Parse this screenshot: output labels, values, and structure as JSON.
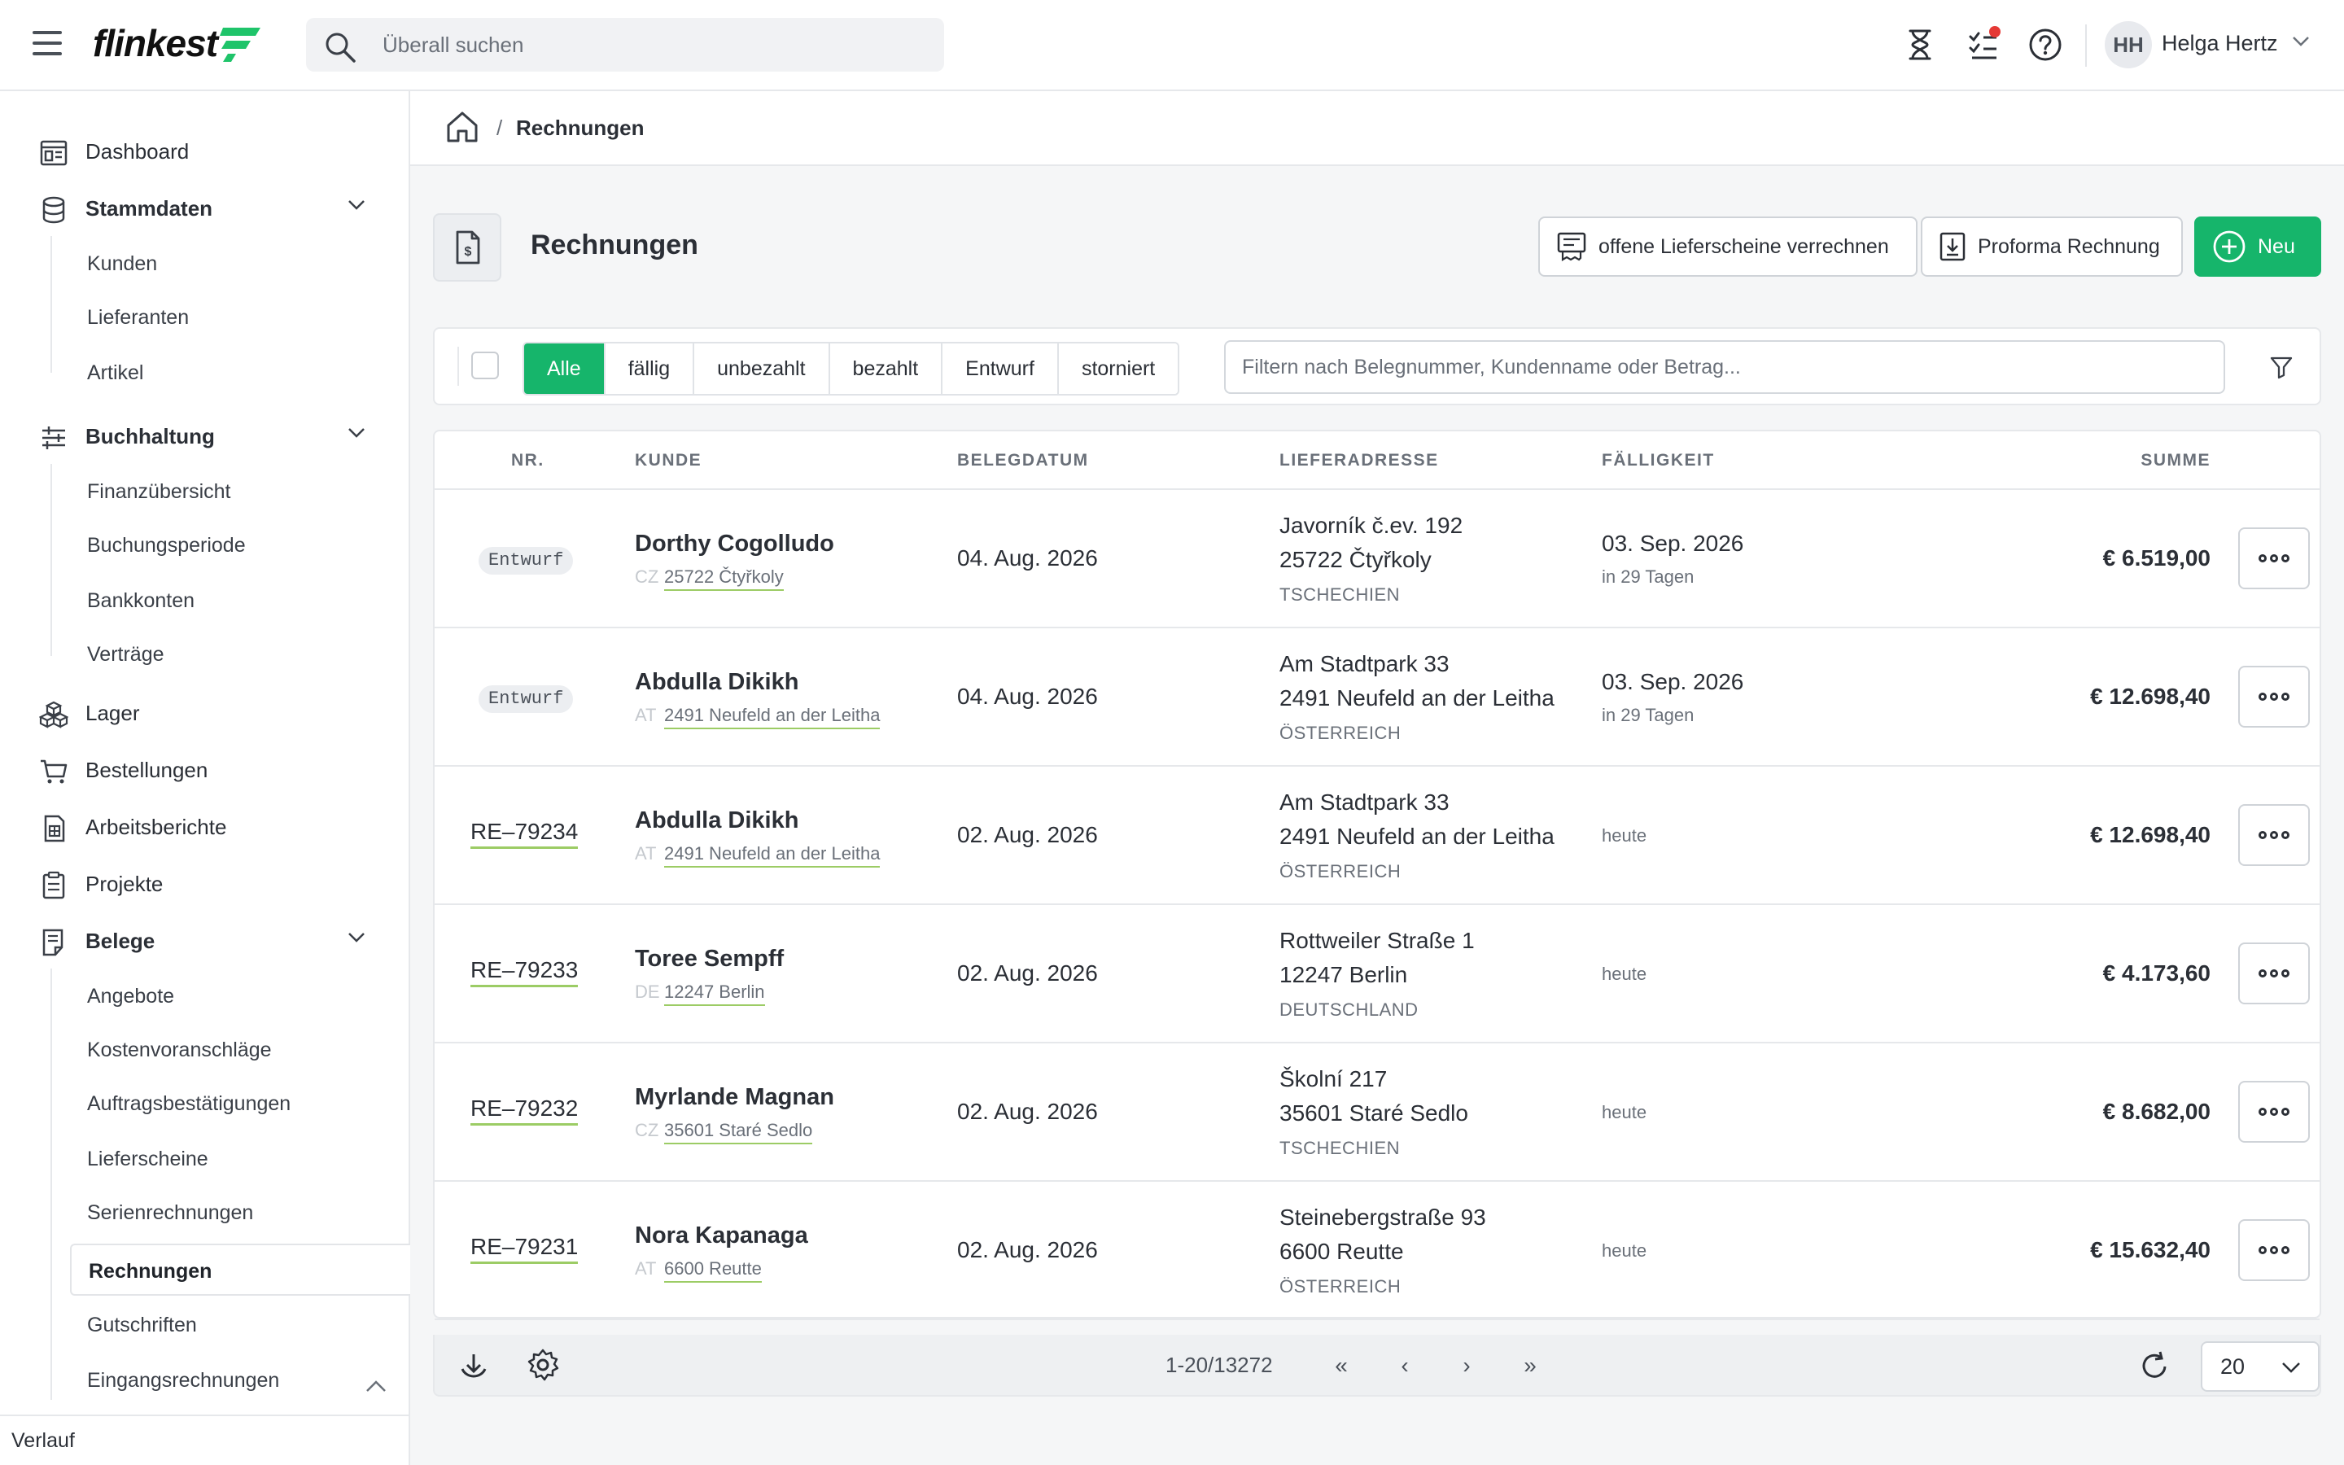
{
  "topbar": {
    "logo": "flinkest",
    "search_placeholder": "Überall suchen",
    "user_initials": "HH",
    "user_name": "Helga Hertz",
    "icons": [
      "hourglass-icon",
      "checklist-icon",
      "help-icon"
    ]
  },
  "sidebar": {
    "items": [
      {
        "label": "Dashboard",
        "icon": "dashboard-icon"
      },
      {
        "label": "Stammdaten",
        "icon": "database-icon",
        "children": [
          "Kunden",
          "Lieferanten",
          "Artikel"
        ]
      },
      {
        "label": "Buchhaltung",
        "icon": "sliders-icon",
        "children": [
          "Finanzübersicht",
          "Buchungsperiode",
          "Bankkonten",
          "Verträge"
        ]
      },
      {
        "label": "Lager",
        "icon": "boxes-icon"
      },
      {
        "label": "Bestellungen",
        "icon": "cart-icon"
      },
      {
        "label": "Arbeitsberichte",
        "icon": "report-icon"
      },
      {
        "label": "Projekte",
        "icon": "clipboard-icon"
      },
      {
        "label": "Belege",
        "icon": "document-icon",
        "children": [
          "Angebote",
          "Kostenvoranschläge",
          "Auftragsbestätigungen",
          "Lieferscheine",
          "Serienrechnungen",
          "Rechnungen",
          "Gutschriften",
          "Eingangsrechnungen"
        ]
      }
    ],
    "active": "Rechnungen",
    "footer": "Verlauf"
  },
  "breadcrumb": {
    "separator": "/",
    "current": "Rechnungen"
  },
  "page": {
    "title": "Rechnungen",
    "btn_open_delivery": "offene Lieferscheine verrechnen",
    "btn_proforma": "Proforma Rechnung",
    "btn_new": "Neu"
  },
  "filters": {
    "tabs": [
      "Alle",
      "fällig",
      "unbezahlt",
      "bezahlt",
      "Entwurf",
      "storniert"
    ],
    "active": "Alle",
    "placeholder": "Filtern nach Belegnummer, Kundenname oder Betrag..."
  },
  "table": {
    "headers": {
      "nr": "NR.",
      "kunde": "KUNDE",
      "belegdatum": "BELEGDATUM",
      "lieferadresse": "LIEFERADRESSE",
      "faelligkeit": "FÄLLIGKEIT",
      "summe": "SUMME"
    },
    "rows": [
      {
        "nr": "Entwurf",
        "draft": true,
        "name": "Dorthy Cogolludo",
        "country": "CZ",
        "city": "25722 Čtyřkoly",
        "date": "04. Aug. 2026",
        "addr1": "Javorník č.ev. 192",
        "addr2": "25722 Čtyřkoly",
        "addr3": "TSCHECHIEN",
        "due": "03. Sep. 2026",
        "due_sub": "in 29 Tagen",
        "sum": "€ 6.519,00"
      },
      {
        "nr": "Entwurf",
        "draft": true,
        "name": "Abdulla Dikikh",
        "country": "AT",
        "city": "2491 Neufeld an der Leitha",
        "date": "04. Aug. 2026",
        "addr1": "Am Stadtpark 33",
        "addr2": "2491 Neufeld an der Leitha",
        "addr3": "ÖSTERREICH",
        "due": "03. Sep. 2026",
        "due_sub": "in 29 Tagen",
        "sum": "€ 12.698,40"
      },
      {
        "nr": "RE–79234",
        "draft": false,
        "name": "Abdulla Dikikh",
        "country": "AT",
        "city": "2491 Neufeld an der Leitha",
        "date": "02. Aug. 2026",
        "addr1": "Am Stadtpark 33",
        "addr2": "2491 Neufeld an der Leitha",
        "addr3": "ÖSTERREICH",
        "due": "",
        "due_sub": "heute",
        "sum": "€ 12.698,40"
      },
      {
        "nr": "RE–79233",
        "draft": false,
        "name": "Toree Sempff",
        "country": "DE",
        "city": "12247 Berlin",
        "date": "02. Aug. 2026",
        "addr1": "Rottweiler Straße 1",
        "addr2": "12247 Berlin",
        "addr3": "DEUTSCHLAND",
        "due": "",
        "due_sub": "heute",
        "sum": "€ 4.173,60"
      },
      {
        "nr": "RE–79232",
        "draft": false,
        "name": "Myrlande Magnan",
        "country": "CZ",
        "city": "35601 Staré Sedlo",
        "date": "02. Aug. 2026",
        "addr1": "Školní 217",
        "addr2": "35601 Staré Sedlo",
        "addr3": "TSCHECHIEN",
        "due": "",
        "due_sub": "heute",
        "sum": "€ 8.682,00"
      },
      {
        "nr": "RE–79231",
        "draft": false,
        "name": "Nora Kapanaga",
        "country": "AT",
        "city": "6600 Reutte",
        "date": "02. Aug. 2026",
        "addr1": "Steinebergstraße 93",
        "addr2": "6600 Reutte",
        "addr3": "ÖSTERREICH",
        "due": "",
        "due_sub": "heute",
        "sum": "€ 15.632,40"
      }
    ]
  },
  "pager": {
    "info": "1-20/13272",
    "first": "«",
    "prev": "‹",
    "next": "›",
    "last": "»",
    "page_size": "20"
  }
}
